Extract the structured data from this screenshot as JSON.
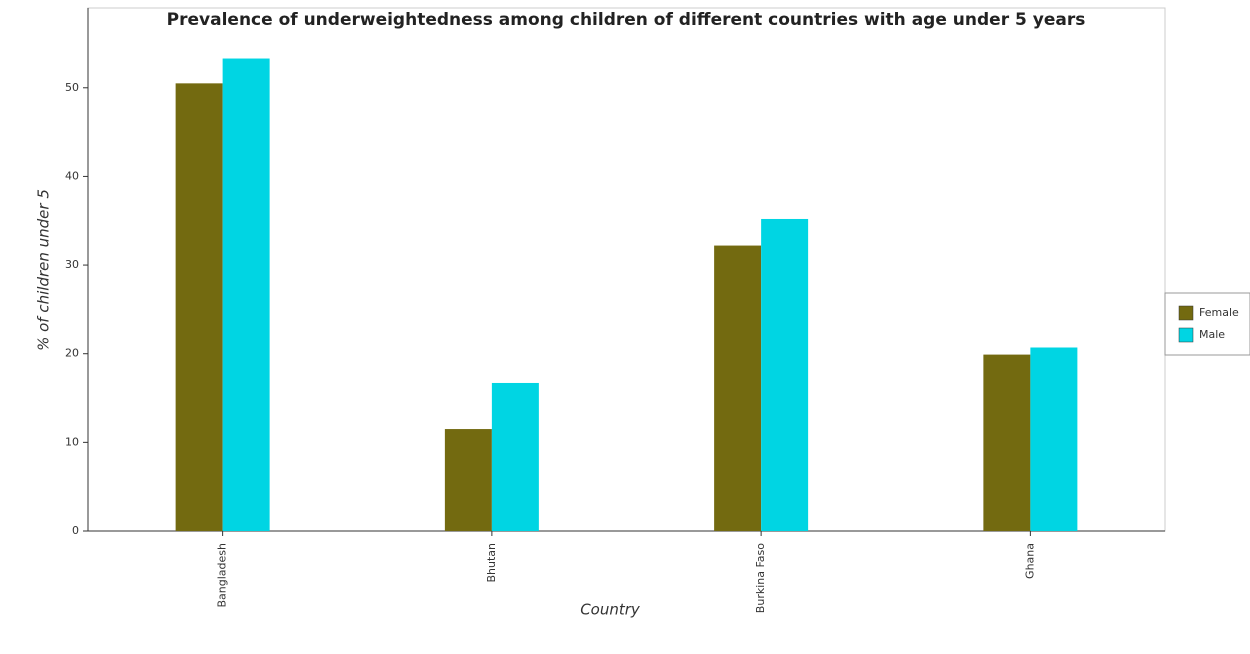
{
  "chart_data": {
    "type": "bar",
    "title": "Prevalence of underweightedness among children of different countries with age under 5 years",
    "x_label": "Country",
    "y_label": "% of children under 5",
    "categories": [
      "Bangladesh",
      "Bhutan",
      "Burkina Faso",
      "Ghana"
    ],
    "series": [
      {
        "name": "Female",
        "color": "#736a10",
        "values": [
          50.5,
          11.5,
          32.2,
          19.9
        ]
      },
      {
        "name": "Male",
        "color": "#00d5e3",
        "values": [
          53.3,
          16.7,
          35.2,
          20.7
        ]
      }
    ],
    "ylim": [
      0,
      59
    ],
    "yticks": [
      0,
      10,
      20,
      30,
      40,
      50
    ],
    "grid": false,
    "legend": "right"
  }
}
